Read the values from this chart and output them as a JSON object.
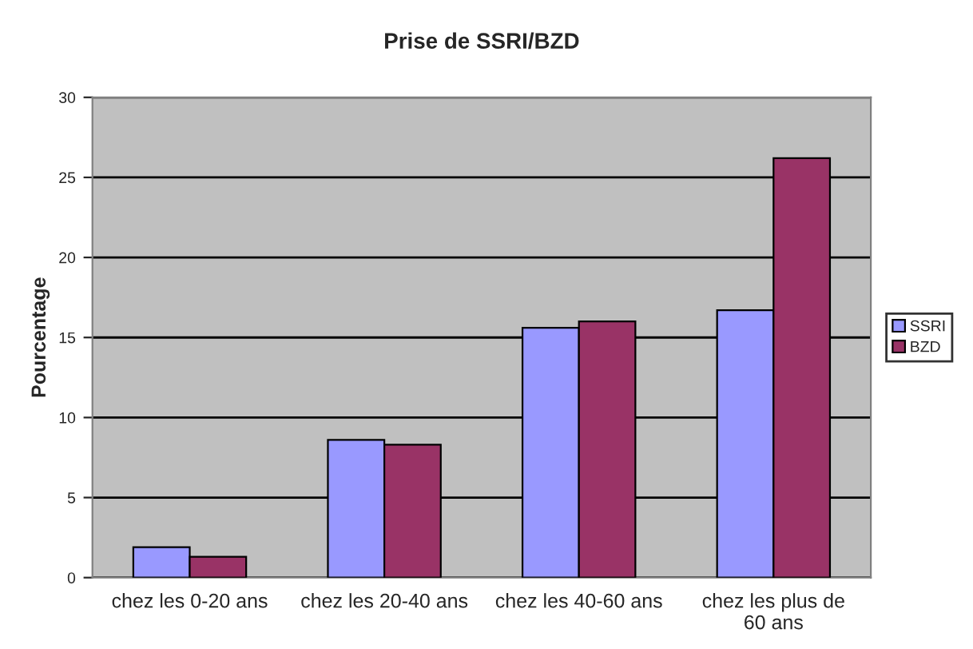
{
  "chart_data": {
    "type": "bar",
    "title": "Prise de SSRI/BZD",
    "ylabel": "Pourcentage",
    "categories": [
      "chez les 0-20 ans",
      "chez les 20-40 ans",
      "chez les 40-60 ans",
      "chez les plus de\n60 ans"
    ],
    "series": [
      {
        "name": "SSRI",
        "color": "#9999ff",
        "values": [
          1.9,
          8.6,
          15.6,
          16.7
        ]
      },
      {
        "name": "BZD",
        "color": "#993366",
        "values": [
          1.3,
          8.3,
          16.0,
          26.2
        ]
      }
    ],
    "ylim": [
      0,
      30
    ],
    "yticks": [
      0,
      5,
      10,
      15,
      20,
      25,
      30
    ],
    "grid": "y",
    "legend": "right"
  }
}
